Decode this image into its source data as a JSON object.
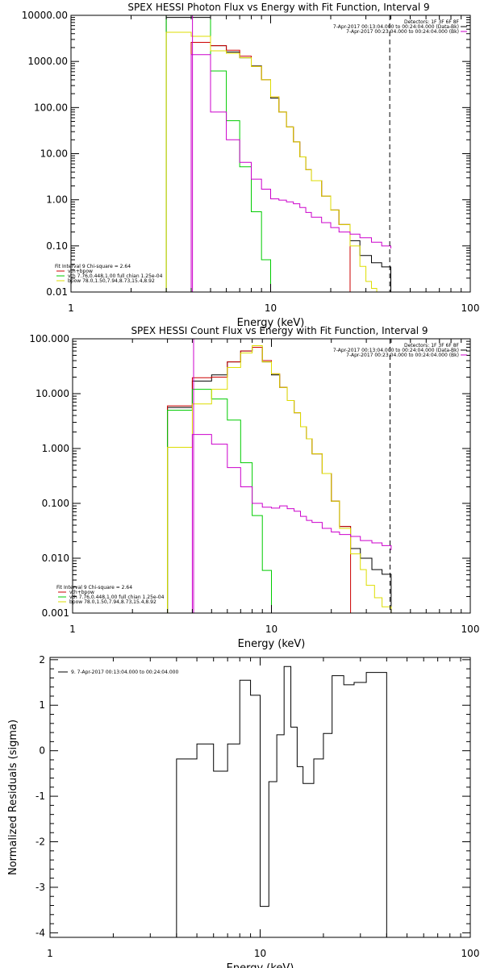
{
  "colors": {
    "data": "#000000",
    "total": "#cc0000",
    "vth": "#00cc00",
    "bpow": "#dddd00",
    "bk": "#cc00cc"
  },
  "chart_data": [
    {
      "type": "line",
      "title": "SPEX HESSI Photon Flux vs Energy with Fit Function, Interval 9",
      "xlabel": "Energy (keV)",
      "ylabel": "",
      "x_scale": "log",
      "y_scale": "log",
      "xlim": [
        1,
        100
      ],
      "ylim": [
        0.01,
        10000
      ],
      "x_ticks": [
        {
          "v": 1,
          "label": "1"
        },
        {
          "v": 10,
          "label": "10"
        },
        {
          "v": 100,
          "label": "100"
        }
      ],
      "y_ticks": [
        {
          "v": 0.01,
          "label": "0.01"
        },
        {
          "v": 0.1,
          "label": "0.10"
        },
        {
          "v": 1,
          "label": "1.00"
        },
        {
          "v": 10,
          "label": "10.00"
        },
        {
          "v": 100,
          "label": "100.00"
        },
        {
          "v": 1000,
          "label": "1000.00"
        },
        {
          "v": 10000,
          "label": "10000.00"
        }
      ],
      "vlines": [
        {
          "x": 4.06,
          "style": "solid",
          "color_key": "bk"
        },
        {
          "x": 39.5,
          "style": "dashed",
          "color_key": "data"
        }
      ],
      "legend_topright": [
        {
          "text": "Detectors: 1F 3F 6F 8F",
          "color_key": "data"
        },
        {
          "text": "7-Apr-2017 00:13:04.000 to 00:24:04.000 (Data-Bk)",
          "color_key": "data"
        },
        {
          "text": "7-Apr-2017 00:23:04.000 to 00:24:04.000 (Bk)",
          "color_key": "bk"
        }
      ],
      "legend_bottomleft": [
        {
          "text": "Fit Interval 9   Chi-square = 2.64",
          "color_key": "data"
        },
        {
          "text": "vth+bpow",
          "color_key": "total"
        },
        {
          "text": "vth 7.76,0.448,1.00  full chian 1.25e-04",
          "color_key": "vth"
        },
        {
          "text": "bpow 78.0,1.50,7.94,8.73,15.4,8.92",
          "color_key": "bpow"
        }
      ],
      "series": [
        {
          "color_key": "data",
          "edges": [
            3.0,
            4.0,
            5.0,
            6.0,
            7.0,
            8.0,
            9.0,
            10.0,
            11.0,
            12.0,
            13.0,
            14.0,
            15.0,
            16.0,
            18.0,
            20.0,
            22.0,
            25.0,
            28.0,
            32.0,
            36.0,
            40.0
          ],
          "values": [
            9000,
            9000,
            2200,
            1600,
            1200,
            800,
            400,
            160,
            80,
            38,
            18,
            8.5,
            4.5,
            2.6,
            1.2,
            0.6,
            0.29,
            0.13,
            0.062,
            0.043,
            0.035
          ]
        },
        {
          "color_key": "total",
          "edges": [
            4.0,
            5.0,
            6.0,
            7.0,
            8.0,
            9.0,
            10.0,
            11.0,
            12.0,
            13.0,
            14.0,
            15.0,
            16.0,
            18.0,
            20.0,
            22.0,
            25.0
          ],
          "values": [
            2600,
            2200,
            1750,
            1300,
            780,
            400,
            170,
            80,
            38,
            18,
            8.5,
            4.5,
            2.6,
            1.2,
            0.6,
            0.29
          ]
        },
        {
          "color_key": "vth",
          "edges": [
            3.0,
            4.0,
            5.0,
            6.0,
            7.0,
            8.0,
            9.0,
            10.0
          ],
          "values": [
            10000,
            10000,
            620,
            52,
            5.2,
            0.55,
            0.05
          ]
        },
        {
          "color_key": "bpow",
          "edges": [
            3.0,
            4.0,
            5.0,
            6.0,
            7.0,
            8.0,
            9.0,
            10.0,
            11.0,
            12.0,
            13.0,
            14.0,
            15.0,
            16.0,
            18.0,
            20.0,
            22.0,
            25.0,
            28.0,
            30.0,
            32.0,
            34.0
          ],
          "values": [
            4300,
            3500,
            1700,
            1500,
            1200,
            780,
            400,
            170,
            80,
            38,
            18,
            8.5,
            4.5,
            2.6,
            1.2,
            0.6,
            0.29,
            0.1,
            0.036,
            0.017,
            0.012
          ]
        },
        {
          "color_key": "bk",
          "edges": [
            4.0,
            5.0,
            6.0,
            7.0,
            8.0,
            9.0,
            10.0,
            11.0,
            12.0,
            13.0,
            14.0,
            15.0,
            16.0,
            18.0,
            20.0,
            22.0,
            25.0,
            28.0,
            32.0,
            36.0,
            40.0
          ],
          "values": [
            1400,
            80,
            20,
            6.5,
            2.8,
            1.7,
            1.05,
            0.98,
            0.9,
            0.82,
            0.68,
            0.53,
            0.42,
            0.32,
            0.25,
            0.2,
            0.18,
            0.15,
            0.12,
            0.1,
            0.088
          ]
        }
      ]
    },
    {
      "type": "line",
      "title": "SPEX HESSI Count Flux vs Energy with Fit Function, Interval 9",
      "xlabel": "Energy (keV)",
      "ylabel": "",
      "x_scale": "log",
      "y_scale": "log",
      "xlim": [
        1,
        100
      ],
      "ylim": [
        0.001,
        100
      ],
      "x_ticks": [
        {
          "v": 1,
          "label": "1"
        },
        {
          "v": 10,
          "label": "10"
        },
        {
          "v": 100,
          "label": "100"
        }
      ],
      "y_ticks": [
        {
          "v": 0.001,
          "label": "0.001"
        },
        {
          "v": 0.01,
          "label": "0.010"
        },
        {
          "v": 0.1,
          "label": "0.100"
        },
        {
          "v": 1,
          "label": "1.000"
        },
        {
          "v": 10,
          "label": "10.000"
        },
        {
          "v": 100,
          "label": "100.000"
        }
      ],
      "vlines": [
        {
          "x": 4.06,
          "style": "dotted",
          "color_key": "data"
        },
        {
          "x": 4.06,
          "style": "solid",
          "color_key": "bk"
        },
        {
          "x": 39.5,
          "style": "dashed",
          "color_key": "data"
        }
      ],
      "legend_topright": [
        {
          "text": "Detectors: 1F 3F 6F 8F",
          "color_key": "data"
        },
        {
          "text": "7-Apr-2017 00:13:04.000 to 00:24:04.000 (Data-Bk)",
          "color_key": "data"
        },
        {
          "text": "7-Apr-2017 00:23:04.000 to 00:24:04.000 (Bk)",
          "color_key": "bk"
        }
      ],
      "legend_bottomleft": [
        {
          "text": "Fit Interval 9   Chi-square = 2.64",
          "color_key": "data"
        },
        {
          "text": "vth+bpow",
          "color_key": "total"
        },
        {
          "text": "vth 7.76,0.448,1.00  full chian 1.25e-04",
          "color_key": "vth"
        },
        {
          "text": "bpow 78.0,1.50,7.94,8.73,15.4,8.92",
          "color_key": "bpow"
        }
      ],
      "series": [
        {
          "color_key": "data",
          "edges": [
            3.0,
            4.0,
            5.0,
            6.0,
            7.0,
            8.0,
            9.0,
            10.0,
            11.0,
            12.0,
            13.0,
            14.0,
            15.0,
            16.0,
            18.0,
            20.0,
            22.0,
            25.0,
            28.0,
            32.0,
            36.0,
            40.0
          ],
          "values": [
            5.6,
            17,
            22,
            38,
            60,
            70,
            38,
            22,
            13,
            7.5,
            4.5,
            2.5,
            1.5,
            0.8,
            0.35,
            0.11,
            0.038,
            0.015,
            0.01,
            0.0062,
            0.0051
          ]
        },
        {
          "color_key": "total",
          "edges": [
            3.0,
            4.0,
            5.0,
            6.0,
            7.0,
            8.0,
            9.0,
            10.0,
            11.0,
            12.0,
            13.0,
            14.0,
            15.0,
            16.0,
            18.0,
            20.0,
            22.0,
            25.0
          ],
          "values": [
            6.0,
            19.5,
            20,
            38,
            60,
            70,
            40,
            23,
            13,
            7.5,
            4.5,
            2.5,
            1.5,
            0.8,
            0.35,
            0.11,
            0.038
          ]
        },
        {
          "color_key": "vth",
          "edges": [
            3.0,
            4.0,
            5.0,
            6.0,
            7.0,
            8.0,
            9.0,
            10.0
          ],
          "values": [
            5.0,
            12,
            8.0,
            3.3,
            0.55,
            0.06,
            0.006
          ]
        },
        {
          "color_key": "bpow",
          "edges": [
            3.0,
            4.0,
            5.0,
            6.0,
            7.0,
            8.0,
            9.0,
            10.0,
            11.0,
            12.0,
            13.0,
            14.0,
            15.0,
            16.0,
            18.0,
            20.0,
            22.0,
            25.0,
            28.0,
            30.0,
            33.0,
            36.0,
            40.0
          ],
          "values": [
            1.05,
            6.5,
            12,
            30,
            55,
            75,
            38,
            23,
            13,
            7.5,
            4.5,
            2.5,
            1.5,
            0.8,
            0.35,
            0.11,
            0.035,
            0.012,
            0.0062,
            0.0032,
            0.0019,
            0.0013
          ]
        },
        {
          "color_key": "bk",
          "edges": [
            4.0,
            5.0,
            6.0,
            7.0,
            8.0,
            9.0,
            10.0,
            11.0,
            12.0,
            13.0,
            14.0,
            15.0,
            16.0,
            18.0,
            20.0,
            22.0,
            25.0,
            28.0,
            32.0,
            36.0,
            40.0
          ],
          "values": [
            1.8,
            1.2,
            0.45,
            0.2,
            0.1,
            0.085,
            0.082,
            0.09,
            0.08,
            0.072,
            0.058,
            0.049,
            0.045,
            0.035,
            0.03,
            0.027,
            0.025,
            0.021,
            0.019,
            0.017,
            0.014
          ]
        }
      ]
    },
    {
      "type": "line",
      "title": "",
      "xlabel": "Energy (keV)",
      "ylabel": "Normalized Residuals (sigma)",
      "x_scale": "log",
      "y_scale": "linear",
      "xlim": [
        1,
        100
      ],
      "ylim": [
        -4.1,
        2.05
      ],
      "x_ticks": [
        {
          "v": 1,
          "label": "1"
        },
        {
          "v": 10,
          "label": "10"
        },
        {
          "v": 100,
          "label": "100"
        }
      ],
      "y_ticks": [
        {
          "v": -4,
          "label": "-4"
        },
        {
          "v": -3,
          "label": "-3"
        },
        {
          "v": -2,
          "label": "-2"
        },
        {
          "v": -1,
          "label": "-1"
        },
        {
          "v": 0,
          "label": "0"
        },
        {
          "v": 1,
          "label": "1"
        },
        {
          "v": 2,
          "label": "2"
        }
      ],
      "legend_topleft": [
        {
          "text": "9.  7-Apr-2017 00:13:04.000 to 00:24:04.000",
          "color_key": "data"
        }
      ],
      "series": [
        {
          "color_key": "data",
          "edges": [
            4.0,
            5.0,
            6.0,
            7.0,
            8.0,
            9.0,
            10.0,
            11.0,
            12.0,
            13.0,
            14.0,
            15.0,
            16.0,
            18.0,
            20.0,
            22.0,
            25.0,
            28.0,
            32.0,
            36.0,
            40.0
          ],
          "values": [
            -0.18,
            0.15,
            -0.45,
            0.15,
            1.55,
            1.22,
            -3.42,
            -0.68,
            0.35,
            1.85,
            0.52,
            -0.35,
            -0.72,
            -0.18,
            0.38,
            1.65,
            1.45,
            1.5,
            1.72,
            1.72
          ],
          "drop_to": -4.1
        }
      ]
    }
  ]
}
